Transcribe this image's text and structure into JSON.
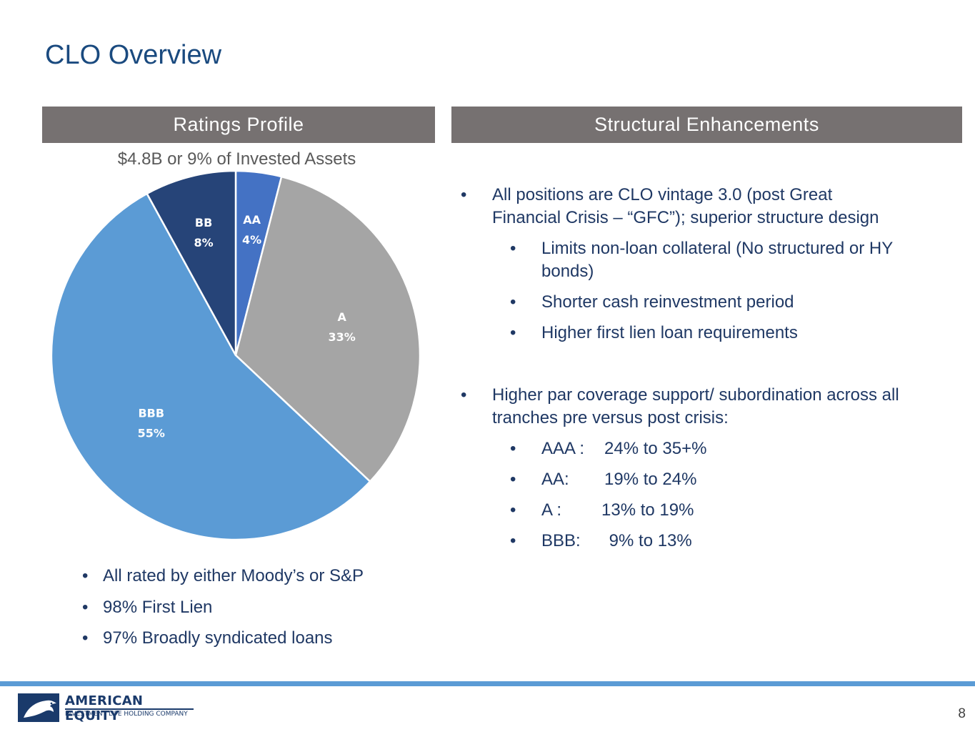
{
  "page": {
    "title": "CLO Overview",
    "page_number": "8"
  },
  "left_panel": {
    "header": "Ratings Profile",
    "subtitle": "$4.8B or 9% of Invested Assets",
    "bullets": [
      "All rated by either Moody’s or S&P",
      "98% First Lien",
      "97% Broadly syndicated loans"
    ]
  },
  "right_panel": {
    "header": "Structural Enhancements",
    "bullet_1": {
      "line1": "All positions are CLO vintage 3.0 (post Great",
      "line2": "Financial Crisis – “GFC”); superior structure design",
      "sub": [
        {
          "line1": "Limits non-loan collateral (No structured or HY",
          "line2": "bonds)"
        },
        {
          "line1": "Shorter cash reinvestment period"
        },
        {
          "line1": "Higher first lien loan requirements"
        }
      ]
    },
    "bullet_2": {
      "line1": "Higher par coverage support/ subordination across all",
      "line2": "tranches pre versus post crisis:",
      "sub": [
        {
          "label": "AAA :",
          "range": "24% to 35+%"
        },
        {
          "label": "AA:",
          "range": "19% to 24%"
        },
        {
          "label": "A :",
          "range": "13% to 19%"
        },
        {
          "label": "BBB:",
          "range": " 9% to 13%"
        }
      ]
    }
  },
  "logo": {
    "name": "AMERICAN EQUITY",
    "tagline": "INVESTMENT LIFE HOLDING COMPANY"
  },
  "bullet_glyph": "•",
  "chart_data": {
    "type": "pie",
    "title": "$4.8B or 9% of Invested Assets",
    "start_angle": "12 o'clock, clockwise",
    "slices": [
      {
        "label": "AA",
        "value": 4,
        "display": "4%",
        "color": "#4472c4",
        "label_color": "#ffffff"
      },
      {
        "label": "A",
        "value": 33,
        "display": "33%",
        "color": "#a5a5a5",
        "label_color": "#ffffff"
      },
      {
        "label": "BBB",
        "value": 55,
        "display": "55%",
        "color": "#5b9bd5",
        "label_color": "#ffffff"
      },
      {
        "label": "BB",
        "value": 8,
        "display": "8%",
        "color": "#264478",
        "label_color": "#ffffff"
      }
    ]
  }
}
